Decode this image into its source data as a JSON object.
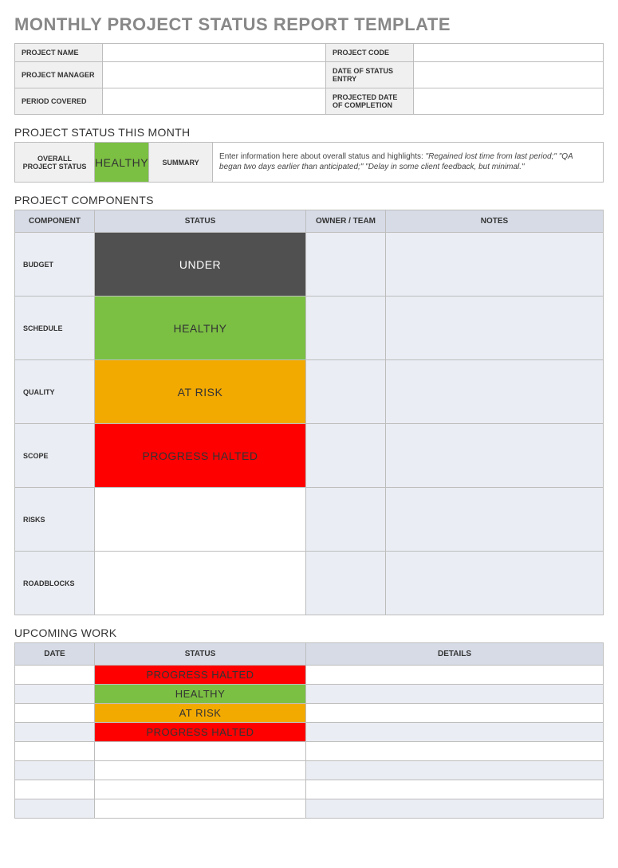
{
  "title": "MONTHLY PROJECT STATUS REPORT TEMPLATE",
  "colors": {
    "title": "#888888",
    "header_bg": "#d6dbe6",
    "alt_row_bg": "#eaedf3",
    "label_bg": "#f0f0f0",
    "border": "#bdbdbd",
    "healthy": "#7bc043",
    "under": "#505050",
    "at_risk": "#f2a900",
    "halted": "#fe0000",
    "text_dark": "#333333",
    "text_light": "#ffffff"
  },
  "info": {
    "labels": {
      "project_name": "PROJECT NAME",
      "project_code": "PROJECT CODE",
      "project_manager": "PROJECT MANAGER",
      "date_entry": "DATE OF STATUS ENTRY",
      "period_covered": "PERIOD COVERED",
      "projected_completion": "PROJECTED DATE OF COMPLETION"
    },
    "values": {
      "project_name": "",
      "project_code": "",
      "project_manager": "",
      "date_entry": "",
      "period_covered": "",
      "projected_completion": ""
    }
  },
  "status_month": {
    "section_title": "PROJECT STATUS THIS MONTH",
    "overall_label": "OVERALL PROJECT STATUS",
    "overall_status": "HEALTHY",
    "overall_bg": "#7bc043",
    "overall_fg": "#333333",
    "summary_label": "SUMMARY",
    "summary_lead": "Enter information here about overall status and highlights: ",
    "summary_italic": "\"Regained lost time from last period;\" \"QA began two days earlier than anticipated;\" \"Delay in some client feedback, but minimal.\""
  },
  "components": {
    "section_title": "PROJECT COMPONENTS",
    "headers": {
      "component": "COMPONENT",
      "status": "STATUS",
      "owner": "OWNER / TEAM",
      "notes": "NOTES"
    },
    "rows": [
      {
        "label": "BUDGET",
        "status": "UNDER",
        "bg": "#505050",
        "fg": "#ffffff",
        "owner": "",
        "notes": ""
      },
      {
        "label": "SCHEDULE",
        "status": "HEALTHY",
        "bg": "#7bc043",
        "fg": "#333333",
        "owner": "",
        "notes": ""
      },
      {
        "label": "QUALITY",
        "status": "AT RISK",
        "bg": "#f2a900",
        "fg": "#333333",
        "owner": "",
        "notes": ""
      },
      {
        "label": "SCOPE",
        "status": "PROGRESS HALTED",
        "bg": "#fe0000",
        "fg": "#333333",
        "owner": "",
        "notes": ""
      },
      {
        "label": "RISKS",
        "status": "",
        "bg": "#ffffff",
        "fg": "#333333",
        "owner": "",
        "notes": ""
      },
      {
        "label": "ROADBLOCKS",
        "status": "",
        "bg": "#ffffff",
        "fg": "#333333",
        "owner": "",
        "notes": ""
      }
    ]
  },
  "upcoming": {
    "section_title": "UPCOMING WORK",
    "headers": {
      "date": "DATE",
      "status": "STATUS",
      "details": "DETAILS"
    },
    "rows": [
      {
        "date": "",
        "status": "PROGRESS HALTED",
        "bg": "#fe0000",
        "fg": "#333333",
        "details": "",
        "alt": false
      },
      {
        "date": "",
        "status": "HEALTHY",
        "bg": "#7bc043",
        "fg": "#333333",
        "details": "",
        "alt": true
      },
      {
        "date": "",
        "status": "AT RISK",
        "bg": "#f2a900",
        "fg": "#333333",
        "details": "",
        "alt": false
      },
      {
        "date": "",
        "status": "PROGRESS HALTED",
        "bg": "#fe0000",
        "fg": "#333333",
        "details": "",
        "alt": true
      },
      {
        "date": "",
        "status": "",
        "bg": "#ffffff",
        "fg": "#333333",
        "details": "",
        "alt": false
      },
      {
        "date": "",
        "status": "",
        "bg": "#ffffff",
        "fg": "#333333",
        "details": "",
        "alt": true
      },
      {
        "date": "",
        "status": "",
        "bg": "#ffffff",
        "fg": "#333333",
        "details": "",
        "alt": false
      },
      {
        "date": "",
        "status": "",
        "bg": "#ffffff",
        "fg": "#333333",
        "details": "",
        "alt": true
      }
    ]
  }
}
